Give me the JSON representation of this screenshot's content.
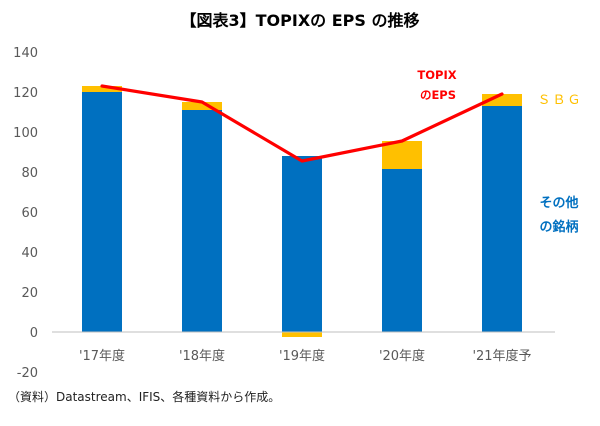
{
  "title": "【図表3】TOPIXの EPS の推移",
  "source_note": "（資料）Datastream、IFIS、各種資料から作成。",
  "colors": {
    "others": "#0070C0",
    "sbg": "#FFC000",
    "topix_eps": "#FF0000",
    "axis_text": "#595959",
    "zero_line": "#BFBFBF"
  },
  "chart_data": {
    "type": "bar",
    "stacked": true,
    "categories": [
      "'17年度",
      "'18年度",
      "'19年度",
      "'20年度",
      "'21年度予"
    ],
    "ylim": [
      -20,
      140
    ],
    "yticks": [
      140,
      120,
      100,
      80,
      60,
      40,
      20,
      0,
      -20
    ],
    "grid": false,
    "legend": "right",
    "series": [
      {
        "name_lines": [
          "その他",
          "の銘柄"
        ],
        "type": "bar",
        "color": "#0070C0",
        "values": [
          120,
          111,
          88,
          81.5,
          113
        ]
      },
      {
        "name_lines": [
          "ＳＢＧ"
        ],
        "type": "bar",
        "color": "#FFC000",
        "values": [
          3,
          4,
          -2.5,
          14,
          6
        ]
      },
      {
        "name_lines": [
          "TOPIX",
          "のEPS"
        ],
        "type": "line",
        "color": "#FF0000",
        "values": [
          123,
          115,
          85.5,
          95.5,
          119
        ]
      }
    ]
  }
}
